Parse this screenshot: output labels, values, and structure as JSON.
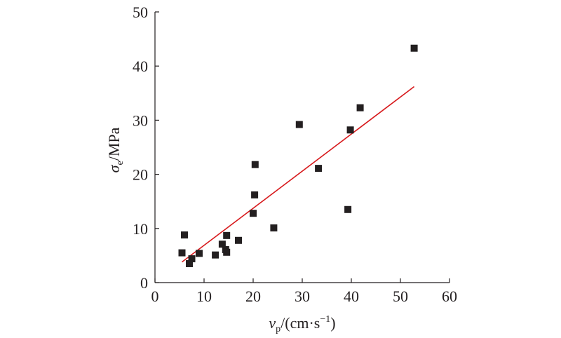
{
  "chart_data": {
    "type": "scatter",
    "x_label": {
      "var": "v",
      "sub": "p",
      "unit": "/(cm·s",
      "sup": "−1",
      "close": ")"
    },
    "y_label": {
      "var": "σ",
      "sub": "e",
      "unit": "/MPa"
    },
    "xlim": [
      0,
      60
    ],
    "ylim": [
      0,
      50
    ],
    "x_ticks": [
      0,
      10,
      20,
      30,
      40,
      50,
      60
    ],
    "y_ticks": [
      0,
      10,
      20,
      30,
      40,
      50
    ],
    "grid": false,
    "points": [
      {
        "x": 5.5,
        "y": 5.5
      },
      {
        "x": 6.0,
        "y": 8.8
      },
      {
        "x": 7.0,
        "y": 3.5
      },
      {
        "x": 7.5,
        "y": 4.4
      },
      {
        "x": 9.0,
        "y": 5.4
      },
      {
        "x": 12.3,
        "y": 5.1
      },
      {
        "x": 13.7,
        "y": 7.1
      },
      {
        "x": 14.4,
        "y": 6.1
      },
      {
        "x": 14.6,
        "y": 5.6
      },
      {
        "x": 14.6,
        "y": 8.7
      },
      {
        "x": 17.0,
        "y": 7.8
      },
      {
        "x": 20.0,
        "y": 12.8
      },
      {
        "x": 20.3,
        "y": 16.2
      },
      {
        "x": 20.4,
        "y": 21.8
      },
      {
        "x": 24.2,
        "y": 10.1
      },
      {
        "x": 29.4,
        "y": 29.2
      },
      {
        "x": 33.3,
        "y": 21.1
      },
      {
        "x": 39.3,
        "y": 13.5
      },
      {
        "x": 39.8,
        "y": 28.2
      },
      {
        "x": 41.8,
        "y": 32.3
      },
      {
        "x": 52.8,
        "y": 43.3
      }
    ],
    "fit_line": {
      "x": [
        5.5,
        52.8
      ],
      "y": [
        3.8,
        36.2
      ]
    },
    "colors": {
      "points": "#231f20",
      "fit_line": "#d7191c",
      "axes": "#231f20"
    }
  }
}
